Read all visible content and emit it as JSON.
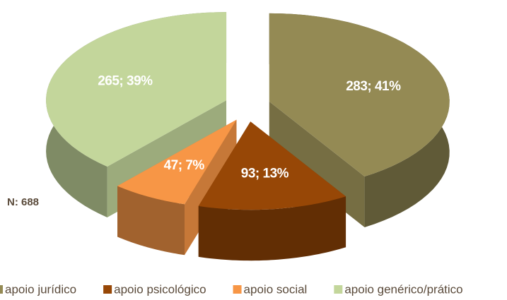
{
  "chart_data": {
    "type": "pie",
    "categories": [
      "apoio jurídico",
      "apoio psicológico",
      "apoio social",
      "apoio genérico/prático"
    ],
    "values": [
      283,
      93,
      47,
      265
    ],
    "value_labels": [
      "283; 41%",
      "93; 13%",
      "47; 7%",
      "265; 39%"
    ],
    "colors": [
      "#948a54",
      "#974706",
      "#f79646",
      "#c3d69b"
    ],
    "annotation": "N: 688",
    "legend": "bottom"
  }
}
